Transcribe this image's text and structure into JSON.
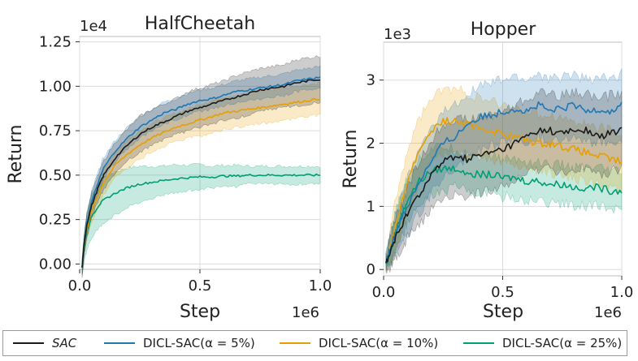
{
  "colors": {
    "SAC": "#1a1a1a",
    "DICL-SAC(α = 5%)": "#1f77b4",
    "DICL-SAC(α = 10%)": "#e69f00",
    "DICL-SAC(α = 25%)": "#009e73",
    "grid": "#dcdcdc",
    "axis": "#333333"
  },
  "legend": {
    "items": [
      "SAC",
      "DICL-SAC(α = 5%)",
      "DICL-SAC(α = 10%)",
      "DICL-SAC(α = 25%)"
    ]
  },
  "chart_data": [
    {
      "type": "line",
      "title": "HalfCheetah",
      "xlabel": "Step",
      "ylabel": "Return",
      "x_offset_text": "1e6",
      "y_offset_text": "1e4",
      "xlim": [
        0,
        1.0
      ],
      "ylim": [
        -0.03,
        1.28
      ],
      "xticks": [
        0,
        0.5,
        1.0
      ],
      "xtick_labels": [
        "0.0",
        "0.5",
        "1.0"
      ],
      "yticks": [
        0,
        0.25,
        0.5,
        0.75,
        1.0,
        1.25
      ],
      "ytick_labels": [
        "0.00",
        "0.25",
        "0.50",
        "0.75",
        "1.00",
        "1.25"
      ],
      "grid": true,
      "x": [
        0.01,
        0.02,
        0.03,
        0.05,
        0.08,
        0.1,
        0.15,
        0.2,
        0.25,
        0.3,
        0.35,
        0.4,
        0.45,
        0.5,
        0.55,
        0.6,
        0.65,
        0.7,
        0.75,
        0.8,
        0.85,
        0.9,
        0.95,
        1.0
      ],
      "series": [
        {
          "name": "SAC",
          "values": [
            -0.02,
            0.12,
            0.22,
            0.33,
            0.44,
            0.5,
            0.6,
            0.67,
            0.73,
            0.77,
            0.8,
            0.83,
            0.86,
            0.88,
            0.9,
            0.92,
            0.94,
            0.96,
            0.98,
            0.99,
            1.0,
            1.02,
            1.03,
            1.04
          ],
          "band": [
            0.05,
            0.06,
            0.07,
            0.07,
            0.07,
            0.08,
            0.09,
            0.09,
            0.1,
            0.1,
            0.1,
            0.1,
            0.11,
            0.11,
            0.11,
            0.11,
            0.12,
            0.12,
            0.12,
            0.12,
            0.12,
            0.13,
            0.13,
            0.13
          ]
        },
        {
          "name": "DICL-SAC(α = 5%)",
          "values": [
            -0.02,
            0.13,
            0.23,
            0.35,
            0.47,
            0.54,
            0.64,
            0.71,
            0.77,
            0.81,
            0.85,
            0.87,
            0.9,
            0.92,
            0.93,
            0.95,
            0.97,
            0.98,
            0.99,
            1.0,
            1.01,
            1.03,
            1.04,
            1.05
          ],
          "band": [
            0.04,
            0.05,
            0.05,
            0.06,
            0.06,
            0.06,
            0.06,
            0.06,
            0.06,
            0.06,
            0.06,
            0.06,
            0.06,
            0.06,
            0.06,
            0.06,
            0.06,
            0.06,
            0.06,
            0.06,
            0.06,
            0.06,
            0.06,
            0.06
          ]
        },
        {
          "name": "DICL-SAC(α = 10%)",
          "values": [
            -0.02,
            0.12,
            0.2,
            0.3,
            0.4,
            0.46,
            0.56,
            0.62,
            0.67,
            0.71,
            0.74,
            0.77,
            0.79,
            0.81,
            0.83,
            0.85,
            0.86,
            0.87,
            0.88,
            0.89,
            0.9,
            0.91,
            0.92,
            0.93
          ],
          "band": [
            0.04,
            0.05,
            0.06,
            0.06,
            0.07,
            0.07,
            0.07,
            0.08,
            0.08,
            0.08,
            0.08,
            0.08,
            0.08,
            0.09,
            0.09,
            0.09,
            0.09,
            0.09,
            0.09,
            0.09,
            0.09,
            0.09,
            0.09,
            0.09
          ]
        },
        {
          "name": "DICL-SAC(α = 25%)",
          "values": [
            -0.02,
            0.1,
            0.18,
            0.27,
            0.33,
            0.36,
            0.4,
            0.43,
            0.45,
            0.46,
            0.47,
            0.48,
            0.485,
            0.49,
            0.49,
            0.495,
            0.495,
            0.5,
            0.5,
            0.5,
            0.5,
            0.5,
            0.5,
            0.5
          ],
          "band": [
            0.05,
            0.08,
            0.1,
            0.12,
            0.13,
            0.13,
            0.12,
            0.11,
            0.1,
            0.09,
            0.08,
            0.08,
            0.07,
            0.07,
            0.06,
            0.06,
            0.06,
            0.05,
            0.05,
            0.05,
            0.05,
            0.05,
            0.05,
            0.05
          ]
        }
      ]
    },
    {
      "type": "line",
      "title": "Hopper",
      "xlabel": "Step",
      "ylabel": "Return",
      "x_offset_text": "1e6",
      "y_offset_text": "1e3",
      "xlim": [
        0,
        1.0
      ],
      "ylim": [
        -0.1,
        3.6
      ],
      "xticks": [
        0,
        0.5,
        1.0
      ],
      "xtick_labels": [
        "0.0",
        "0.5",
        "1.0"
      ],
      "yticks": [
        0,
        1,
        2,
        3
      ],
      "ytick_labels": [
        "0",
        "1",
        "2",
        "3"
      ],
      "grid": true,
      "x": [
        0.01,
        0.03,
        0.05,
        0.08,
        0.1,
        0.15,
        0.2,
        0.25,
        0.3,
        0.35,
        0.4,
        0.45,
        0.5,
        0.55,
        0.6,
        0.65,
        0.7,
        0.75,
        0.8,
        0.85,
        0.9,
        0.95,
        1.0
      ],
      "series": [
        {
          "name": "SAC",
          "values": [
            0.1,
            0.3,
            0.5,
            0.7,
            0.9,
            1.2,
            1.5,
            1.7,
            1.8,
            1.75,
            1.8,
            1.85,
            1.9,
            2.0,
            2.1,
            2.2,
            2.2,
            2.15,
            2.2,
            2.2,
            2.1,
            2.15,
            2.2
          ],
          "band": [
            0.1,
            0.25,
            0.3,
            0.35,
            0.4,
            0.5,
            0.55,
            0.6,
            0.6,
            0.6,
            0.6,
            0.6,
            0.6,
            0.6,
            0.6,
            0.6,
            0.6,
            0.6,
            0.6,
            0.6,
            0.6,
            0.6,
            0.6
          ]
        },
        {
          "name": "DICL-SAC(α = 5%)",
          "values": [
            0.1,
            0.35,
            0.6,
            0.85,
            1.0,
            1.4,
            1.7,
            2.0,
            2.1,
            2.3,
            2.4,
            2.45,
            2.5,
            2.55,
            2.5,
            2.6,
            2.5,
            2.55,
            2.6,
            2.5,
            2.55,
            2.5,
            2.6
          ],
          "band": [
            0.1,
            0.25,
            0.35,
            0.4,
            0.45,
            0.5,
            0.5,
            0.5,
            0.5,
            0.5,
            0.5,
            0.5,
            0.5,
            0.5,
            0.5,
            0.5,
            0.5,
            0.5,
            0.5,
            0.5,
            0.5,
            0.5,
            0.5
          ]
        },
        {
          "name": "DICL-SAC(α = 10%)",
          "values": [
            0.1,
            0.4,
            0.7,
            1.1,
            1.4,
            1.9,
            2.2,
            2.35,
            2.35,
            2.3,
            2.25,
            2.2,
            2.15,
            2.1,
            2.05,
            2.0,
            2.0,
            1.95,
            1.9,
            1.85,
            1.8,
            1.75,
            1.7
          ],
          "band": [
            0.1,
            0.3,
            0.4,
            0.45,
            0.5,
            0.5,
            0.5,
            0.5,
            0.5,
            0.5,
            0.45,
            0.45,
            0.45,
            0.45,
            0.45,
            0.45,
            0.45,
            0.45,
            0.45,
            0.45,
            0.45,
            0.45,
            0.45
          ]
        },
        {
          "name": "DICL-SAC(α = 25%)",
          "values": [
            0.1,
            0.35,
            0.6,
            0.9,
            1.1,
            1.4,
            1.55,
            1.6,
            1.6,
            1.55,
            1.5,
            1.5,
            1.45,
            1.45,
            1.4,
            1.4,
            1.35,
            1.35,
            1.3,
            1.3,
            1.3,
            1.25,
            1.25
          ],
          "band": [
            0.1,
            0.25,
            0.3,
            0.35,
            0.35,
            0.35,
            0.35,
            0.35,
            0.3,
            0.3,
            0.3,
            0.3,
            0.3,
            0.3,
            0.3,
            0.3,
            0.3,
            0.3,
            0.3,
            0.3,
            0.3,
            0.3,
            0.3
          ]
        }
      ]
    }
  ]
}
